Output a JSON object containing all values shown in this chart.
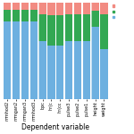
{
  "categories": [
    "mmhod2",
    "mmgan2",
    "mmgan3",
    "mmhod3",
    "bpc",
    "hr(c",
    "hr(cc",
    "pulse3",
    "pulse2",
    "pulse1",
    "height",
    "weight"
  ],
  "blue": [
    0.8,
    0.8,
    0.8,
    0.8,
    0.6,
    0.55,
    0.55,
    0.6,
    0.6,
    0.6,
    0.75,
    0.52
  ],
  "green": [
    0.12,
    0.12,
    0.12,
    0.12,
    0.28,
    0.32,
    0.32,
    0.28,
    0.28,
    0.28,
    0.16,
    0.36
  ],
  "red": [
    0.08,
    0.08,
    0.08,
    0.08,
    0.12,
    0.13,
    0.13,
    0.12,
    0.12,
    0.12,
    0.09,
    0.12
  ],
  "color_blue": "#6db0e0",
  "color_green": "#33a853",
  "color_red": "#f28b82",
  "xlabel": "Dependent variable",
  "xlabel_fontsize": 5.5,
  "tick_fontsize": 3.5,
  "background": "#ffffff",
  "figsize": [
    1.5,
    1.5
  ],
  "dpi": 100
}
